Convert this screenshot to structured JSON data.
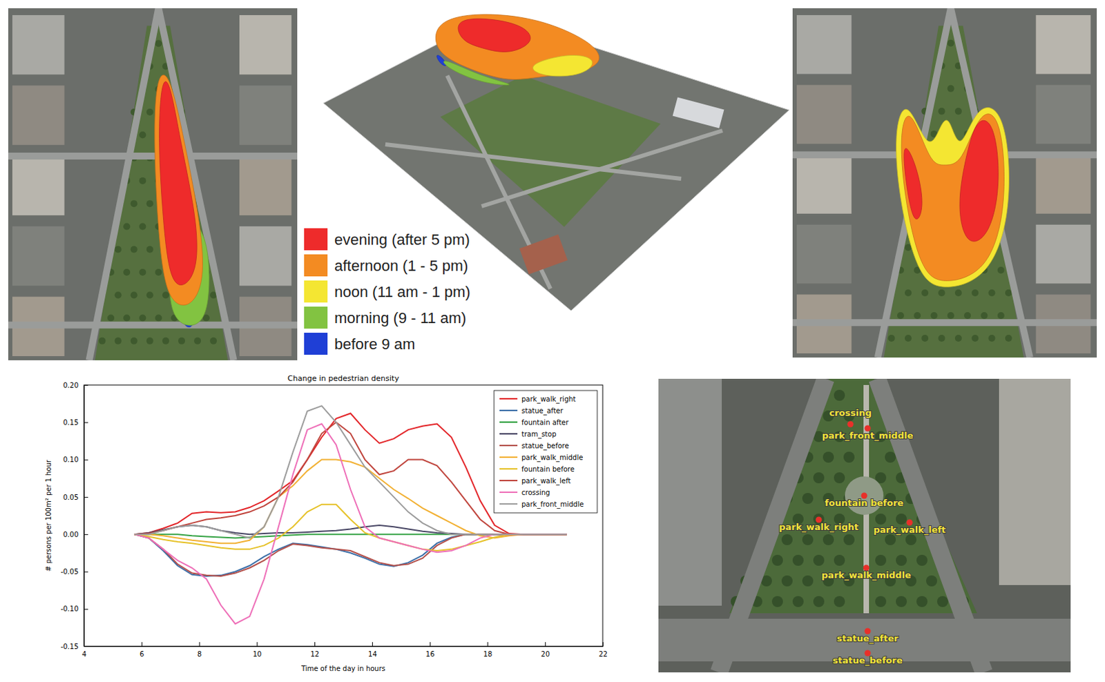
{
  "chart_data": {
    "type": "line",
    "title": "Change in pedestrian density",
    "x_label": "Time of the day in hours",
    "y_label": "# persons per 100m² per 1 hour",
    "x": [
      5.75,
      6.25,
      6.75,
      7.25,
      7.75,
      8.25,
      8.75,
      9.25,
      9.75,
      10.25,
      10.75,
      11.25,
      11.75,
      12.25,
      12.75,
      13.25,
      13.75,
      14.25,
      14.75,
      15.25,
      15.75,
      16.25,
      16.75,
      17.25,
      17.75,
      18.25,
      18.75,
      19.25,
      19.75,
      20.25,
      20.75
    ],
    "series": [
      {
        "name": "park_walk_right",
        "color": "#e3262a",
        "values": [
          0,
          0.002,
          0.008,
          0.015,
          0.028,
          0.03,
          0.029,
          0.03,
          0.036,
          0.045,
          0.058,
          0.072,
          0.1,
          0.13,
          0.155,
          0.162,
          0.14,
          0.122,
          0.128,
          0.14,
          0.145,
          0.148,
          0.13,
          0.09,
          0.045,
          0.012,
          0.001,
          0,
          0,
          0,
          0
        ]
      },
      {
        "name": "statue_after",
        "color": "#3b6fa8",
        "values": [
          0,
          -0.005,
          -0.022,
          -0.042,
          -0.054,
          -0.056,
          -0.055,
          -0.05,
          -0.042,
          -0.03,
          -0.02,
          -0.012,
          -0.014,
          -0.017,
          -0.02,
          -0.025,
          -0.032,
          -0.04,
          -0.043,
          -0.038,
          -0.028,
          -0.012,
          -0.004,
          0,
          0,
          0,
          0,
          0,
          0,
          0,
          0
        ]
      },
      {
        "name": "fountain after",
        "color": "#36a345",
        "values": [
          0,
          0,
          0,
          0,
          -0.002,
          -0.003,
          -0.004,
          -0.005,
          -0.004,
          -0.003,
          -0.002,
          -0.001,
          0,
          0,
          0,
          0,
          0,
          0,
          0,
          0,
          0,
          0,
          0,
          0,
          0,
          0,
          0,
          0,
          0,
          0,
          0
        ]
      },
      {
        "name": "tram_stop",
        "color": "#4a4866",
        "values": [
          0,
          0.002,
          0.006,
          0.01,
          0.012,
          0.01,
          0.005,
          0.002,
          0,
          0.001,
          0.002,
          0.002,
          0.003,
          0.004,
          0.005,
          0.007,
          0.01,
          0.012,
          0.01,
          0.007,
          0.004,
          0.002,
          0.001,
          0,
          0,
          0,
          0,
          0,
          0,
          0,
          0
        ]
      },
      {
        "name": "statue_before",
        "color": "#b4504a",
        "values": [
          0,
          -0.005,
          -0.02,
          -0.04,
          -0.052,
          -0.055,
          -0.056,
          -0.052,
          -0.045,
          -0.035,
          -0.022,
          -0.013,
          -0.015,
          -0.018,
          -0.02,
          -0.022,
          -0.03,
          -0.038,
          -0.042,
          -0.04,
          -0.032,
          -0.015,
          -0.005,
          0,
          0,
          0,
          0,
          0,
          0,
          0,
          0
        ]
      },
      {
        "name": "park_walk_middle",
        "color": "#f2b134",
        "values": [
          0,
          0,
          -0.002,
          -0.005,
          -0.008,
          -0.01,
          -0.012,
          -0.012,
          -0.008,
          0.01,
          0.05,
          0.065,
          0.085,
          0.1,
          0.1,
          0.097,
          0.09,
          0.075,
          0.06,
          0.048,
          0.035,
          0.025,
          0.015,
          0.005,
          -0.002,
          -0.005,
          -0.002,
          0,
          0,
          0,
          0
        ]
      },
      {
        "name": "fountain before",
        "color": "#e6c22a",
        "values": [
          0,
          -0.003,
          -0.007,
          -0.01,
          -0.012,
          -0.015,
          -0.018,
          -0.02,
          -0.02,
          -0.015,
          -0.005,
          0.01,
          0.03,
          0.04,
          0.04,
          0.02,
          0.002,
          -0.005,
          -0.01,
          -0.015,
          -0.02,
          -0.022,
          -0.02,
          -0.015,
          -0.01,
          -0.004,
          0,
          0,
          0,
          0,
          0
        ]
      },
      {
        "name": "park_walk_left",
        "color": "#c0463e",
        "values": [
          0,
          0.001,
          0.005,
          0.01,
          0.015,
          0.02,
          0.022,
          0.025,
          0.03,
          0.038,
          0.05,
          0.07,
          0.1,
          0.135,
          0.15,
          0.135,
          0.1,
          0.08,
          0.085,
          0.1,
          0.1,
          0.092,
          0.07,
          0.045,
          0.02,
          0.005,
          0,
          0,
          0,
          0,
          0
        ]
      },
      {
        "name": "crossing",
        "color": "#ee6fb8",
        "values": [
          0,
          -0.005,
          -0.02,
          -0.035,
          -0.045,
          -0.06,
          -0.095,
          -0.12,
          -0.11,
          -0.06,
          0.01,
          0.08,
          0.14,
          0.148,
          0.12,
          0.06,
          0.01,
          -0.005,
          -0.01,
          -0.015,
          -0.02,
          -0.024,
          -0.022,
          -0.015,
          -0.005,
          0,
          0,
          0,
          0,
          0,
          0
        ]
      },
      {
        "name": "park_front_middle",
        "color": "#9c9c9c",
        "values": [
          0,
          0,
          0.005,
          0.01,
          0.012,
          0.01,
          0.005,
          0,
          -0.005,
          0.01,
          0.05,
          0.11,
          0.165,
          0.172,
          0.15,
          0.12,
          0.09,
          0.07,
          0.05,
          0.03,
          0.015,
          0.005,
          0,
          0,
          0,
          0,
          0,
          0,
          0,
          0,
          0
        ]
      }
    ],
    "xlim": [
      4,
      22
    ],
    "xticks": [
      4,
      6,
      8,
      10,
      12,
      14,
      16,
      18,
      20,
      22
    ],
    "ylim": [
      -0.15,
      0.2
    ],
    "yticks": [
      -0.15,
      {
        "value": -0.1,
        "label": "-0.10"
      },
      -0.05,
      {
        "value": 0,
        "label": "0.00"
      },
      0.05,
      {
        "value": 0.1,
        "label": "0.10"
      },
      0.15,
      {
        "value": 0.2,
        "label": "0.20"
      }
    ],
    "grid": false,
    "legend": "upper right"
  },
  "time_legend": {
    "items": [
      {
        "label": "evening (after 5 pm)",
        "color": "#ee2b2b"
      },
      {
        "label": "afternoon (1 - 5 pm)",
        "color": "#f38b22"
      },
      {
        "label": "noon (11 am - 1 pm)",
        "color": "#f4e632"
      },
      {
        "label": "morning (9 - 11 am)",
        "color": "#82c341"
      },
      {
        "label": "before 9 am",
        "color": "#1f3fd6"
      }
    ]
  },
  "site_map": {
    "points": [
      {
        "label": "crossing"
      },
      {
        "label": "park_front_middle"
      },
      {
        "label": "fountain before"
      },
      {
        "label": "park_walk_right"
      },
      {
        "label": "park_walk_left"
      },
      {
        "label": "park_walk_middle"
      },
      {
        "label": "statue_after"
      },
      {
        "label": "statue_before"
      }
    ]
  }
}
